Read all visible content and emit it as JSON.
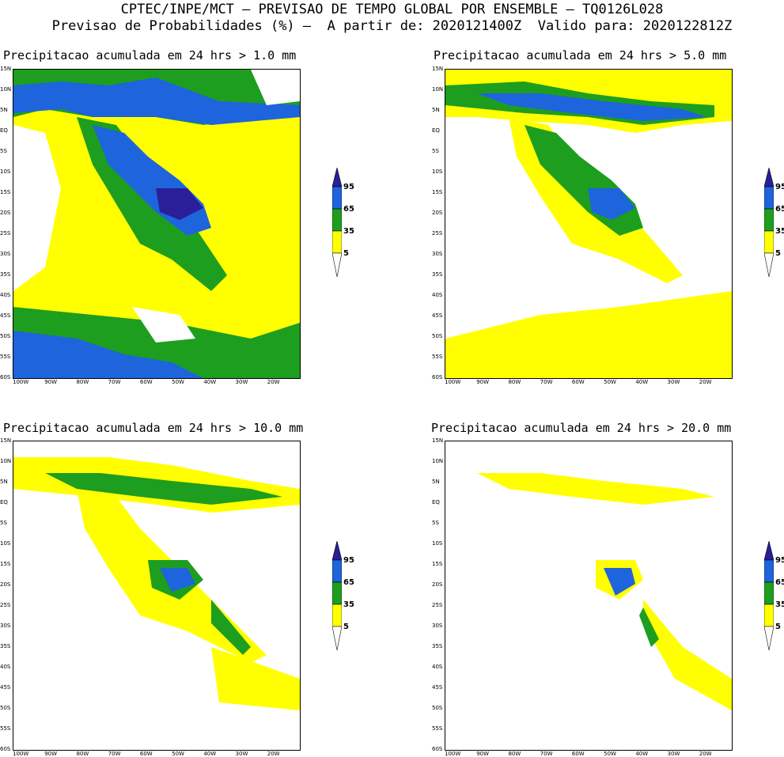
{
  "header": {
    "line1": "CPTEC/INPE/MCT – PREVISAO DE TEMPO GLOBAL POR ENSEMBLE – TQ0126L028",
    "line2": "Previsao de Probabilidades (%) –  A partir de: 2020121400Z  Valido para: 2020122812Z"
  },
  "lat_labels": [
    "15N",
    "10N",
    "5N",
    "EQ",
    "5S",
    "10S",
    "15S",
    "20S",
    "25S",
    "30S",
    "35S",
    "40S",
    "45S",
    "50S",
    "55S",
    "60S"
  ],
  "lon_labels": [
    "100W",
    "90W",
    "80W",
    "70W",
    "60W",
    "50W",
    "40W",
    "30W",
    "20W"
  ],
  "colorbar": {
    "levels": [
      "95",
      "65",
      "35",
      "5"
    ],
    "colors": [
      "#2a1f99",
      "#1e64dc",
      "#1e9e1e",
      "#ffff00",
      "#ffffff"
    ]
  },
  "panels": [
    {
      "title": "Precipitacao acumulada em 24 hrs > 1.0 mm",
      "threshold": 1.0
    },
    {
      "title": "Precipitacao acumulada em 24 hrs > 5.0 mm",
      "threshold": 5.0
    },
    {
      "title": "Precipitacao acumulada em 24 hrs > 10.0 mm",
      "threshold": 10.0
    },
    {
      "title": "Precipitacao acumulada em 24 hrs > 20.0 mm",
      "threshold": 20.0
    }
  ]
}
